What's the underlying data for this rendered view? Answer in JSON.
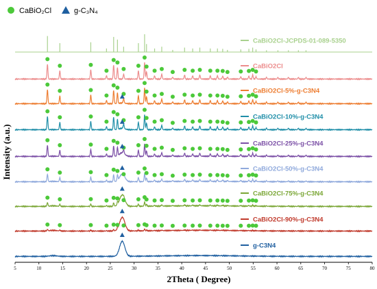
{
  "chart_data": {
    "type": "line",
    "xlabel": "2Theta ( Degree)",
    "ylabel": "Intensity (a.u.)",
    "xlim": [
      5,
      80
    ],
    "x_ticks": [
      5,
      10,
      15,
      20,
      25,
      30,
      35,
      40,
      45,
      50,
      55,
      60,
      65,
      70,
      75,
      80
    ],
    "legend": [
      {
        "marker": "circle",
        "color": "#4cc93a",
        "label": "CaBiO₂Cl"
      },
      {
        "marker": "triangle",
        "color": "#1f5fa0",
        "label": "g-C₃N₄"
      }
    ],
    "series": [
      {
        "name": "CaBiO2Cl-JCPDS-01-089-5350",
        "color": "#a9d18e",
        "kind": "reference"
      },
      {
        "name": "CaBiO2Cl",
        "color": "#ec8c8c",
        "kind": "pattern",
        "cabio_fraction": 1.0,
        "gcn_fraction": 0.0
      },
      {
        "name": "CaBiO2Cl-5%-g-C3N4",
        "color": "#ed7d31",
        "kind": "pattern",
        "cabio_fraction": 0.95,
        "gcn_fraction": 0.05
      },
      {
        "name": "CaBiO2Cl-10%-g-C3N4",
        "color": "#1f8ea8",
        "kind": "pattern",
        "cabio_fraction": 0.9,
        "gcn_fraction": 0.1
      },
      {
        "name": "CaBiO2Cl-25%-g-C3N4",
        "color": "#7b4fa6",
        "kind": "pattern",
        "cabio_fraction": 0.75,
        "gcn_fraction": 0.25
      },
      {
        "name": "CaBiO2Cl-50%-g-C3N4",
        "color": "#8fa9dc",
        "kind": "pattern",
        "cabio_fraction": 0.5,
        "gcn_fraction": 0.5
      },
      {
        "name": "CaBiO2Cl-75%-g-C3N4",
        "color": "#7aa635",
        "kind": "pattern",
        "cabio_fraction": 0.25,
        "gcn_fraction": 0.75
      },
      {
        "name": "CaBiO2Cl-90%-g-C3N4",
        "color": "#c0392b",
        "kind": "pattern",
        "cabio_fraction": 0.1,
        "gcn_fraction": 0.9
      },
      {
        "name": "g-C3N4",
        "color": "#1f5fa0",
        "kind": "pattern",
        "cabio_fraction": 0.0,
        "gcn_fraction": 1.0
      }
    ],
    "cabio_peaks": [
      [
        11.8,
        0.9
      ],
      [
        14.4,
        0.5
      ],
      [
        20.9,
        0.55
      ],
      [
        24.2,
        0.2
      ],
      [
        25.7,
        0.85
      ],
      [
        26.5,
        0.7
      ],
      [
        27.8,
        0.3
      ],
      [
        30.9,
        0.5
      ],
      [
        32.2,
        1.0
      ],
      [
        32.6,
        0.45
      ],
      [
        34.3,
        0.2
      ],
      [
        35.8,
        0.3
      ],
      [
        38.1,
        0.12
      ],
      [
        40.6,
        0.25
      ],
      [
        42.3,
        0.2
      ],
      [
        43.8,
        0.25
      ],
      [
        46.0,
        0.2
      ],
      [
        47.5,
        0.2
      ],
      [
        48.6,
        0.18
      ],
      [
        49.6,
        0.12
      ],
      [
        52.4,
        0.15
      ],
      [
        54.1,
        0.18
      ],
      [
        54.9,
        0.25
      ],
      [
        55.6,
        0.15
      ],
      [
        57.8,
        0.1
      ],
      [
        60.2,
        0.1
      ],
      [
        62.4,
        0.1
      ],
      [
        64.5,
        0.1
      ],
      [
        66.1,
        0.1
      ]
    ],
    "gcn_peaks": [
      [
        13.0,
        0.05
      ],
      [
        27.5,
        1.0
      ]
    ]
  }
}
